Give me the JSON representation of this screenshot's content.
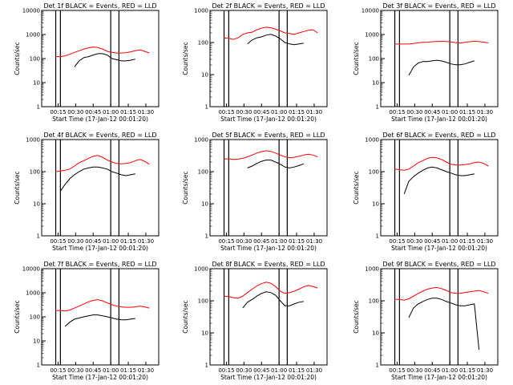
{
  "chart_data": {
    "type": "line",
    "y_scale": "log",
    "ylim": [
      1,
      10000
    ],
    "y_ticks": [
      "1",
      "10",
      "100",
      "1000",
      "10000"
    ],
    "x_ticks": [
      "00:15",
      "00:30",
      "00:45",
      "01:00",
      "01:15",
      "01:30"
    ],
    "xlabel": "Start Time (17-Jan-12 00:01:20)",
    "ylabel": "Counts/sec",
    "grid": false,
    "colors": {
      "events": "#000000",
      "lld": "#ff0000"
    },
    "panels": [
      {
        "title": "Det 1f BLACK = Events, RED = LLD",
        "ytop": 10000,
        "x": [
          12,
          16,
          20,
          24,
          28,
          32,
          36,
          40,
          44,
          48,
          52,
          56,
          60,
          64,
          68,
          72,
          76,
          80,
          84,
          88,
          92
        ],
        "lld": [
          120,
          120,
          130,
          150,
          180,
          210,
          250,
          280,
          300,
          290,
          250,
          200,
          180,
          170,
          170,
          175,
          190,
          210,
          230,
          200,
          170
        ],
        "events": [
          null,
          null,
          null,
          null,
          45,
          80,
          110,
          120,
          140,
          160,
          160,
          140,
          100,
          90,
          80,
          80,
          85,
          95,
          null,
          null,
          null
        ]
      },
      {
        "title": "Det 2f BLACK = Events, RED = LLD",
        "ytop": 1000,
        "x": [
          12,
          16,
          20,
          24,
          28,
          32,
          36,
          40,
          44,
          48,
          52,
          56,
          60,
          64,
          68,
          72,
          76,
          80,
          84,
          88,
          92
        ],
        "lld": [
          140,
          135,
          125,
          140,
          180,
          200,
          210,
          250,
          280,
          300,
          290,
          260,
          230,
          200,
          190,
          180,
          200,
          220,
          240,
          250,
          200
        ],
        "events": [
          null,
          null,
          null,
          null,
          null,
          90,
          120,
          140,
          150,
          170,
          180,
          160,
          130,
          100,
          90,
          85,
          90,
          95,
          null,
          null,
          null
        ]
      },
      {
        "title": "Det 3f BLACK = Events, RED = LLD",
        "ytop": 10000,
        "x": [
          12,
          16,
          20,
          24,
          28,
          32,
          36,
          40,
          44,
          48,
          52,
          56,
          60,
          64,
          68,
          72,
          76,
          80,
          84,
          88,
          92
        ],
        "lld": [
          400,
          400,
          400,
          400,
          420,
          450,
          470,
          480,
          500,
          510,
          520,
          510,
          490,
          460,
          440,
          470,
          500,
          520,
          510,
          480,
          450
        ],
        "events": [
          null,
          null,
          null,
          20,
          45,
          65,
          75,
          75,
          80,
          85,
          80,
          70,
          60,
          55,
          55,
          60,
          70,
          80,
          null,
          null,
          null
        ]
      },
      {
        "title": "Det 4f BLACK = Events, RED = LLD",
        "ytop": 1000,
        "x": [
          12,
          16,
          20,
          24,
          28,
          32,
          36,
          40,
          44,
          48,
          52,
          56,
          60,
          64,
          68,
          72,
          76,
          80,
          84,
          88,
          92
        ],
        "lld": [
          100,
          105,
          110,
          120,
          150,
          190,
          220,
          260,
          300,
          320,
          280,
          230,
          200,
          180,
          175,
          180,
          190,
          220,
          240,
          210,
          170
        ],
        "events": [
          null,
          25,
          40,
          60,
          80,
          100,
          120,
          130,
          140,
          140,
          130,
          120,
          100,
          90,
          80,
          75,
          80,
          85,
          null,
          null,
          null
        ]
      },
      {
        "title": "Det 5f BLACK = Events, RED = LLD",
        "ytop": 1000,
        "x": [
          12,
          16,
          20,
          24,
          28,
          32,
          36,
          40,
          44,
          48,
          52,
          56,
          60,
          64,
          68,
          72,
          76,
          80,
          84,
          88,
          92
        ],
        "lld": [
          250,
          250,
          240,
          245,
          260,
          290,
          330,
          380,
          420,
          450,
          430,
          380,
          330,
          290,
          270,
          280,
          300,
          330,
          350,
          330,
          290
        ],
        "events": [
          null,
          null,
          null,
          null,
          null,
          130,
          150,
          180,
          210,
          230,
          230,
          200,
          170,
          140,
          130,
          140,
          155,
          175,
          null,
          null,
          null
        ]
      },
      {
        "title": "Det 6f BLACK = Events, RED = LLD",
        "ytop": 1000,
        "x": [
          12,
          16,
          20,
          24,
          28,
          32,
          36,
          40,
          44,
          48,
          52,
          56,
          60,
          64,
          68,
          72,
          76,
          80,
          84,
          88,
          92
        ],
        "lld": [
          120,
          115,
          110,
          120,
          150,
          190,
          220,
          260,
          280,
          270,
          240,
          200,
          170,
          160,
          160,
          165,
          175,
          190,
          200,
          180,
          150
        ],
        "events": [
          null,
          null,
          20,
          50,
          70,
          90,
          110,
          130,
          140,
          130,
          115,
          100,
          90,
          80,
          75,
          75,
          80,
          85,
          null,
          null,
          null
        ]
      },
      {
        "title": "Det 7f BLACK = Events, RED = LLD",
        "ytop": 10000,
        "x": [
          12,
          16,
          20,
          24,
          28,
          32,
          36,
          40,
          44,
          48,
          52,
          56,
          60,
          64,
          68,
          72,
          76,
          80,
          84,
          88,
          92
        ],
        "lld": [
          180,
          180,
          175,
          190,
          230,
          280,
          340,
          420,
          480,
          520,
          460,
          380,
          320,
          280,
          260,
          250,
          250,
          260,
          280,
          260,
          230
        ],
        "events": [
          null,
          null,
          40,
          60,
          80,
          90,
          100,
          110,
          120,
          120,
          110,
          100,
          90,
          80,
          75,
          75,
          80,
          85,
          null,
          null,
          null
        ]
      },
      {
        "title": "Det 8f BLACK = Events, RED = LLD",
        "ytop": 1000,
        "x": [
          12,
          16,
          20,
          24,
          28,
          32,
          36,
          40,
          44,
          48,
          52,
          56,
          60,
          64,
          68,
          72,
          76,
          80,
          84,
          88,
          92
        ],
        "lld": [
          140,
          135,
          125,
          120,
          140,
          180,
          230,
          290,
          340,
          380,
          350,
          280,
          200,
          170,
          180,
          200,
          230,
          270,
          300,
          280,
          250
        ],
        "events": [
          null,
          null,
          null,
          null,
          60,
          90,
          110,
          140,
          170,
          190,
          180,
          150,
          100,
          70,
          70,
          80,
          90,
          95,
          null,
          null,
          null
        ]
      },
      {
        "title": "Det 9f BLACK = Events, RED = LLD",
        "ytop": 1000,
        "x": [
          12,
          16,
          20,
          24,
          28,
          32,
          36,
          40,
          44,
          48,
          52,
          56,
          60,
          64,
          68,
          72,
          76,
          80,
          84,
          88,
          92
        ],
        "lld": [
          110,
          110,
          105,
          115,
          140,
          170,
          200,
          230,
          250,
          260,
          240,
          210,
          180,
          170,
          170,
          180,
          190,
          200,
          210,
          190,
          170
        ],
        "events": [
          null,
          null,
          null,
          30,
          60,
          80,
          95,
          110,
          120,
          120,
          110,
          95,
          85,
          75,
          70,
          70,
          75,
          80,
          3,
          null,
          null
        ]
      }
    ]
  }
}
